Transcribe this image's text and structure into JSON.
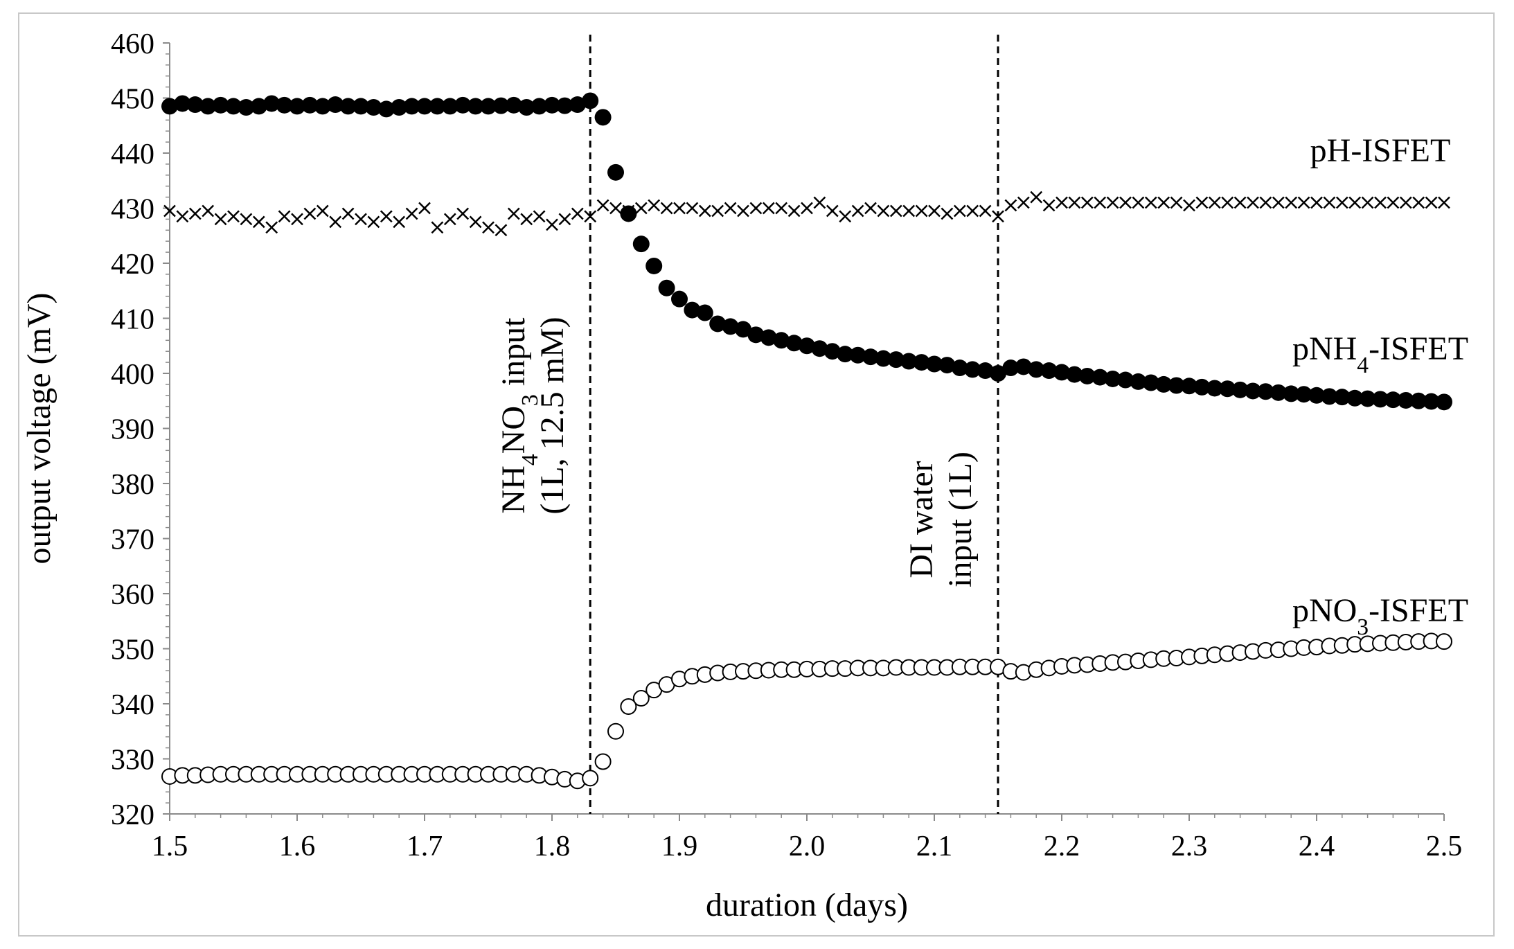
{
  "chart_data": {
    "type": "scatter",
    "xlabel": "duration (days)",
    "ylabel": "output voltage (mV)",
    "xlim": [
      1.5,
      2.5
    ],
    "ylim": [
      320,
      460
    ],
    "x_ticks": [
      "1.5",
      "1.6",
      "1.7",
      "1.8",
      "1.9",
      "2.0",
      "2.1",
      "2.2",
      "2.3",
      "2.4",
      "2.5"
    ],
    "y_ticks": [
      "320",
      "330",
      "340",
      "350",
      "360",
      "370",
      "380",
      "390",
      "400",
      "410",
      "420",
      "430",
      "440",
      "450",
      "460"
    ],
    "vlines": [
      {
        "x": 1.83,
        "label_lines": [
          "NH4NO3 input",
          "(1L, 12.5 mM)"
        ]
      },
      {
        "x": 2.15,
        "label_lines": [
          "DI water",
          "input (1L)"
        ]
      }
    ],
    "series": [
      {
        "name": "pH-ISFET",
        "marker": "x",
        "label_x": 2.45,
        "label_y": 438.5,
        "x": [
          1.5,
          1.51,
          1.52,
          1.53,
          1.54,
          1.55,
          1.56,
          1.57,
          1.58,
          1.59,
          1.6,
          1.61,
          1.62,
          1.63,
          1.64,
          1.65,
          1.66,
          1.67,
          1.68,
          1.69,
          1.7,
          1.71,
          1.72,
          1.73,
          1.74,
          1.75,
          1.76,
          1.77,
          1.78,
          1.79,
          1.8,
          1.81,
          1.82,
          1.83,
          1.84,
          1.85,
          1.86,
          1.87,
          1.88,
          1.89,
          1.9,
          1.91,
          1.92,
          1.93,
          1.94,
          1.95,
          1.96,
          1.97,
          1.98,
          1.99,
          2.0,
          2.01,
          2.02,
          2.03,
          2.04,
          2.05,
          2.06,
          2.07,
          2.08,
          2.09,
          2.1,
          2.11,
          2.12,
          2.13,
          2.14,
          2.15,
          2.16,
          2.17,
          2.18,
          2.19,
          2.2,
          2.21,
          2.22,
          2.23,
          2.24,
          2.25,
          2.26,
          2.27,
          2.28,
          2.29,
          2.3,
          2.31,
          2.32,
          2.33,
          2.34,
          2.35,
          2.36,
          2.37,
          2.38,
          2.39,
          2.4,
          2.41,
          2.42,
          2.43,
          2.44,
          2.45,
          2.46,
          2.47,
          2.48,
          2.49,
          2.5
        ],
        "y": [
          429.5,
          428.5,
          429,
          429.5,
          428,
          428.5,
          428,
          427.5,
          426.5,
          428.5,
          428,
          429,
          429.5,
          427.5,
          429,
          428,
          427.5,
          428.5,
          427.5,
          429,
          430,
          426.5,
          428,
          429,
          427.5,
          426.5,
          426,
          429,
          428,
          428.5,
          427,
          428,
          429,
          428.5,
          430.5,
          430,
          429.5,
          430,
          430.5,
          430,
          430,
          430,
          429.5,
          429.5,
          430,
          429.5,
          430,
          430,
          430,
          429.5,
          430,
          431,
          429.5,
          428.5,
          429.5,
          430,
          429.5,
          429.5,
          429.5,
          429.5,
          429.5,
          429,
          429.5,
          429.5,
          429.5,
          428.5,
          430.5,
          431,
          432,
          430.5,
          431,
          431,
          431,
          431,
          431,
          431,
          431,
          431,
          431,
          431,
          430.5,
          431,
          431,
          431,
          431,
          431,
          431,
          431,
          431,
          431,
          431,
          431,
          431,
          431,
          431,
          431,
          431,
          431,
          431,
          431,
          431
        ]
      },
      {
        "name": "pNH4-ISFET",
        "marker": "filled-circle",
        "label_x": 2.45,
        "label_y": 402.5,
        "x": [
          1.5,
          1.51,
          1.52,
          1.53,
          1.54,
          1.55,
          1.56,
          1.57,
          1.58,
          1.59,
          1.6,
          1.61,
          1.62,
          1.63,
          1.64,
          1.65,
          1.66,
          1.67,
          1.68,
          1.69,
          1.7,
          1.71,
          1.72,
          1.73,
          1.74,
          1.75,
          1.76,
          1.77,
          1.78,
          1.79,
          1.8,
          1.81,
          1.82,
          1.83,
          1.84,
          1.85,
          1.86,
          1.87,
          1.88,
          1.89,
          1.9,
          1.91,
          1.92,
          1.93,
          1.94,
          1.95,
          1.96,
          1.97,
          1.98,
          1.99,
          2.0,
          2.01,
          2.02,
          2.03,
          2.04,
          2.05,
          2.06,
          2.07,
          2.08,
          2.09,
          2.1,
          2.11,
          2.12,
          2.13,
          2.14,
          2.15,
          2.16,
          2.17,
          2.18,
          2.19,
          2.2,
          2.21,
          2.22,
          2.23,
          2.24,
          2.25,
          2.26,
          2.27,
          2.28,
          2.29,
          2.3,
          2.31,
          2.32,
          2.33,
          2.34,
          2.35,
          2.36,
          2.37,
          2.38,
          2.39,
          2.4,
          2.41,
          2.42,
          2.43,
          2.44,
          2.45,
          2.46,
          2.47,
          2.48,
          2.49,
          2.5
        ],
        "y": [
          448.5,
          449,
          448.8,
          448.5,
          448.7,
          448.5,
          448.3,
          448.5,
          449,
          448.7,
          448.5,
          448.7,
          448.5,
          448.8,
          448.5,
          448.5,
          448.3,
          448,
          448.3,
          448.5,
          448.5,
          448.5,
          448.5,
          448.7,
          448.5,
          448.5,
          448.6,
          448.7,
          448.3,
          448.5,
          448.7,
          448.6,
          448.8,
          449.5,
          446.5,
          436.5,
          429,
          423.5,
          419.5,
          415.5,
          413.5,
          411.5,
          411,
          409,
          408.5,
          408,
          407,
          406.5,
          406,
          405.5,
          405,
          404.5,
          404,
          403.5,
          403.3,
          403,
          402.7,
          402.5,
          402.2,
          402,
          401.7,
          401.5,
          401,
          400.7,
          400.5,
          400,
          401,
          401.2,
          400.7,
          400.5,
          400.2,
          399.8,
          399.5,
          399.3,
          399,
          398.8,
          398.5,
          398.3,
          398,
          397.8,
          397.7,
          397.5,
          397.3,
          397.2,
          397,
          396.8,
          396.7,
          396.5,
          396.3,
          396.2,
          396,
          395.8,
          395.7,
          395.5,
          395.4,
          395.3,
          395.2,
          395.1,
          395,
          394.9,
          394.8
        ]
      },
      {
        "name": "pNO3-ISFET",
        "marker": "open-circle",
        "label_x": 2.45,
        "label_y": 355,
        "x": [
          1.5,
          1.51,
          1.52,
          1.53,
          1.54,
          1.55,
          1.56,
          1.57,
          1.58,
          1.59,
          1.6,
          1.61,
          1.62,
          1.63,
          1.64,
          1.65,
          1.66,
          1.67,
          1.68,
          1.69,
          1.7,
          1.71,
          1.72,
          1.73,
          1.74,
          1.75,
          1.76,
          1.77,
          1.78,
          1.79,
          1.8,
          1.81,
          1.82,
          1.83,
          1.84,
          1.85,
          1.86,
          1.87,
          1.88,
          1.89,
          1.9,
          1.91,
          1.92,
          1.93,
          1.94,
          1.95,
          1.96,
          1.97,
          1.98,
          1.99,
          2.0,
          2.01,
          2.02,
          2.03,
          2.04,
          2.05,
          2.06,
          2.07,
          2.08,
          2.09,
          2.1,
          2.11,
          2.12,
          2.13,
          2.14,
          2.15,
          2.16,
          2.17,
          2.18,
          2.19,
          2.2,
          2.21,
          2.22,
          2.23,
          2.24,
          2.25,
          2.26,
          2.27,
          2.28,
          2.29,
          2.3,
          2.31,
          2.32,
          2.33,
          2.34,
          2.35,
          2.36,
          2.37,
          2.38,
          2.39,
          2.4,
          2.41,
          2.42,
          2.43,
          2.44,
          2.45,
          2.46,
          2.47,
          2.48,
          2.49,
          2.5
        ],
        "y": [
          326.8,
          327,
          327,
          327.1,
          327.2,
          327.2,
          327.2,
          327.2,
          327.2,
          327.2,
          327.2,
          327.2,
          327.2,
          327.2,
          327.2,
          327.2,
          327.2,
          327.2,
          327.2,
          327.2,
          327.2,
          327.2,
          327.2,
          327.2,
          327.2,
          327.2,
          327.2,
          327.2,
          327.2,
          327,
          326.7,
          326.3,
          326,
          326.5,
          329.5,
          335,
          339.5,
          341,
          342.5,
          343.5,
          344.5,
          345,
          345.3,
          345.6,
          345.8,
          345.9,
          346,
          346.1,
          346.2,
          346.2,
          346.3,
          346.3,
          346.4,
          346.4,
          346.5,
          346.5,
          346.5,
          346.6,
          346.6,
          346.6,
          346.6,
          346.6,
          346.7,
          346.7,
          346.7,
          346.7,
          345.9,
          345.7,
          346.2,
          346.5,
          346.8,
          347,
          347.1,
          347.3,
          347.5,
          347.6,
          347.8,
          348,
          348.2,
          348.3,
          348.5,
          348.7,
          348.9,
          349.1,
          349.3,
          349.5,
          349.7,
          349.8,
          350,
          350.2,
          350.3,
          350.5,
          350.6,
          350.8,
          350.9,
          351,
          351.1,
          351.2,
          351.3,
          351.4,
          351.3
        ]
      }
    ]
  }
}
